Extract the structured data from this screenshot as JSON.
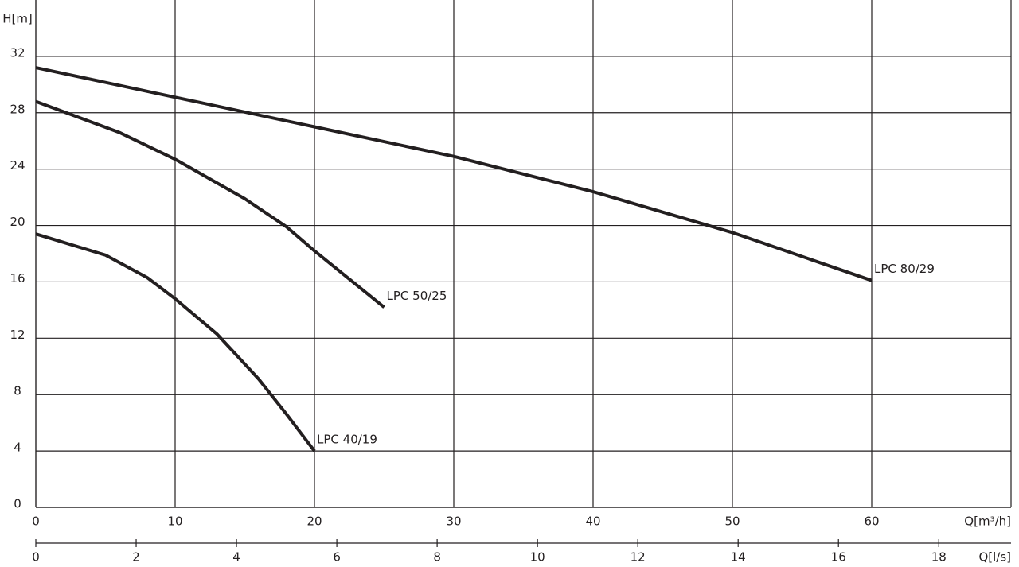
{
  "chart_data": {
    "type": "line",
    "ylabel": "H[m]",
    "xlabel": "Q[m³/h]",
    "x2label": "Q[l/s]",
    "xlim": [
      0,
      70
    ],
    "xticks": [
      0,
      10,
      20,
      30,
      40,
      50,
      60
    ],
    "x2lim": [
      0,
      19.44
    ],
    "x2ticks": [
      0,
      2,
      4,
      6,
      8,
      10,
      12,
      14,
      16,
      18
    ],
    "ylim": [
      0,
      36
    ],
    "yticks": [
      0,
      4,
      8,
      12,
      16,
      20,
      24,
      28,
      32
    ],
    "grid": true,
    "color": "#231f20",
    "series": [
      {
        "name": "LPC 80/29",
        "x": [
          0,
          10,
          20,
          30,
          40,
          50,
          60
        ],
        "values": [
          31.2,
          29.1,
          27.0,
          24.9,
          22.4,
          19.5,
          16.1
        ]
      },
      {
        "name": "LPC 50/25",
        "x": [
          0,
          6,
          10,
          15,
          18,
          20,
          25
        ],
        "values": [
          28.8,
          26.6,
          24.7,
          21.9,
          19.9,
          18.2,
          14.2
        ]
      },
      {
        "name": "LPC 40/19",
        "x": [
          0,
          5,
          8,
          10,
          13,
          16,
          18,
          20
        ],
        "values": [
          19.4,
          17.9,
          16.3,
          14.8,
          12.3,
          9.1,
          6.6,
          4.0
        ]
      }
    ]
  }
}
